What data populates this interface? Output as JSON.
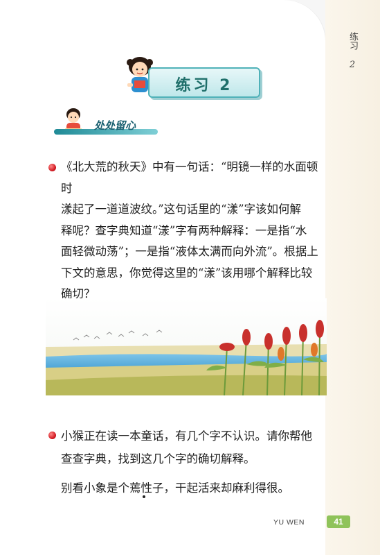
{
  "side": {
    "label": "练习",
    "number": "2"
  },
  "title": {
    "text": "练习 2"
  },
  "section": {
    "title": "处处留心"
  },
  "exercise1": {
    "lines": [
      "《北大荒的秋天》中有一句话：“明镜一样的水面顿时",
      "漾起了一道道波纹。”这句话里的“漾”字该如何解",
      "释呢？查字典知道“漾”字有两种解释：一是指“水",
      "面轻微动荡”；一是指“液体太满而向外流”。根据上",
      "下文的意思，你觉得这里的“漾”该用哪个解释比较",
      "确切？"
    ]
  },
  "exercise2": {
    "lines": [
      "小猴正在读一本童话，有几个字不认识。请你帮他",
      "查查字典，找到这几个字的确切解释。"
    ]
  },
  "example_sentence": "别看小象是个蔫性子，干起活来却麻利得很。",
  "footer": {
    "label": "YU WEN",
    "page": "41"
  },
  "colors": {
    "accent_teal": "#4fb1b8",
    "bullet_red": "#d0161e",
    "page_badge": "#8fc35a"
  }
}
